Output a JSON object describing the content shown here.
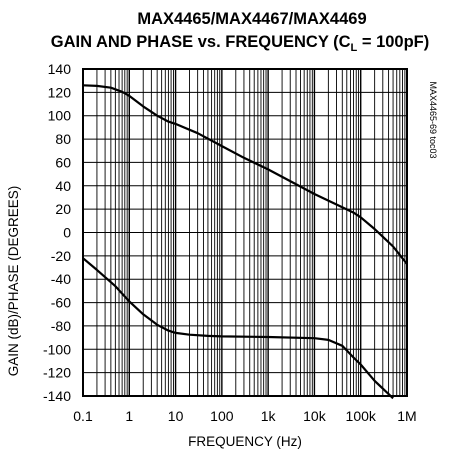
{
  "chart_data": {
    "type": "line",
    "title_line1": "MAX4465/MAX4467/MAX4469",
    "title_line2": "GAIN AND PHASE vs. FREQUENCY (C",
    "title_sub": "L",
    "title_tail": " = 100pF)",
    "xlabel": "FREQUENCY (Hz)",
    "ylabel": "GAIN (dB)/PHASE (DEGREES)",
    "part_code": "MAX4465-69 toc03",
    "x_scale": "log",
    "xlim": [
      0.1,
      1000000
    ],
    "ylim": [
      -140,
      140
    ],
    "x_ticks": [
      0.1,
      1,
      10,
      100,
      1000,
      10000,
      100000,
      1000000
    ],
    "x_tick_labels": [
      "0.1",
      "1",
      "10",
      "100",
      "1k",
      "10k",
      "100k",
      "1M"
    ],
    "y_ticks": [
      140,
      120,
      100,
      80,
      60,
      40,
      20,
      0,
      -20,
      -40,
      -60,
      -80,
      -100,
      -120,
      -140
    ],
    "y_tick_labels": [
      "140",
      "120",
      "100",
      "80",
      "60",
      "40",
      "20",
      "0",
      "-20",
      "-40",
      "-60",
      "-80",
      "-100",
      "-120",
      "-140"
    ],
    "grid": true,
    "series": [
      {
        "x": [
          0.1,
          0.2,
          0.4,
          0.7,
          1,
          2,
          4,
          7,
          10,
          30,
          100,
          300,
          1000,
          3000,
          10000,
          30000,
          70000,
          100000,
          200000,
          500000,
          1000000
        ],
        "y": [
          126,
          125.5,
          124,
          120.5,
          117,
          108,
          100,
          95,
          93,
          85,
          74,
          64,
          54,
          44,
          33,
          24,
          17,
          13,
          3,
          -12,
          -27
        ]
      },
      {
        "x": [
          0.1,
          0.2,
          0.5,
          1,
          2,
          4,
          7,
          10,
          20,
          50,
          100,
          1000,
          10000,
          20000,
          40000,
          70000,
          100000,
          200000,
          500000
        ],
        "y": [
          -22,
          -32,
          -46,
          -59,
          -70,
          -79,
          -84,
          -86,
          -87.5,
          -88.5,
          -89,
          -89.5,
          -90.5,
          -92,
          -97,
          -107,
          -113,
          -127,
          -142
        ]
      }
    ]
  }
}
